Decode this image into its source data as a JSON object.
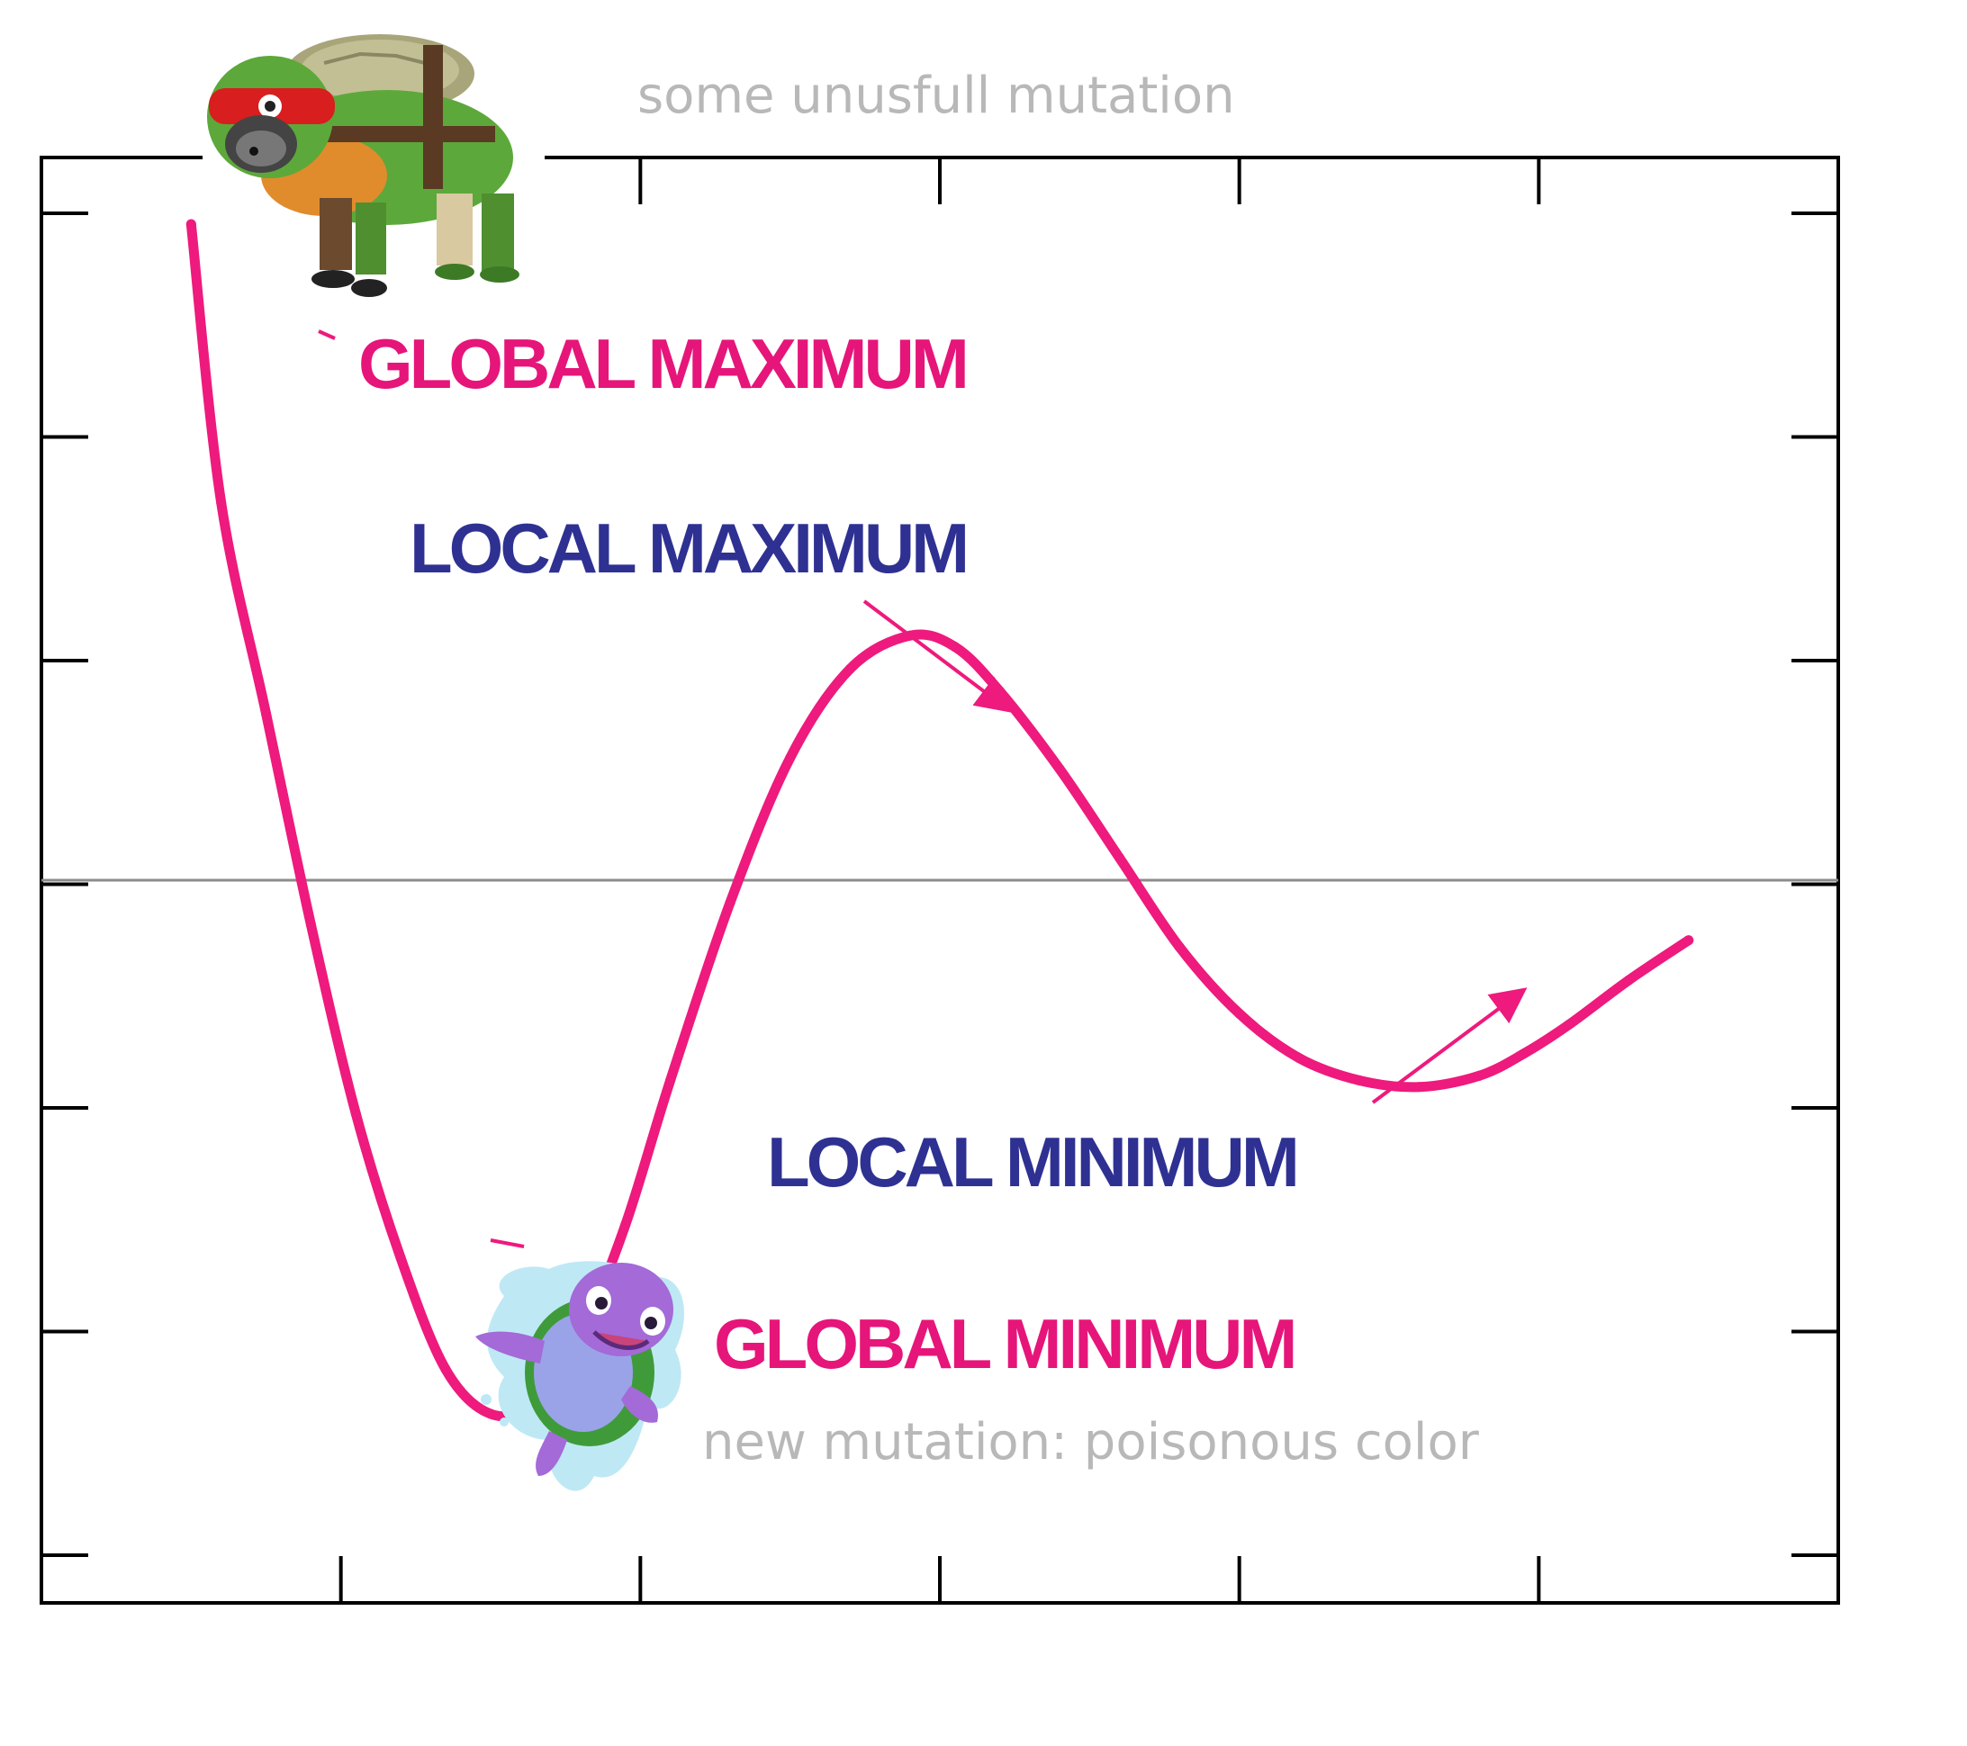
{
  "chart_data": {
    "type": "line",
    "title": "",
    "xlabel": "",
    "ylabel": "",
    "x_ticks": 6,
    "y_ticks": 7,
    "xlim": [
      0,
      6
    ],
    "ylim": [
      -3.25,
      3.25
    ],
    "zero_line": true,
    "grid": false,
    "legend": "none",
    "series": [
      {
        "x": [
          0.5,
          0.6,
          0.75,
          0.9,
          1.05,
          1.2,
          1.35,
          1.5,
          1.65,
          1.8,
          1.95,
          2.1,
          2.3,
          2.5,
          2.7,
          2.9,
          3.05,
          3.2,
          3.4,
          3.6,
          3.8,
          4.0,
          4.2,
          4.4,
          4.6,
          4.8,
          4.95,
          5.1,
          5.3,
          5.5
        ],
        "y": [
          2.95,
          1.7,
          0.75,
          -0.2,
          -1.05,
          -1.7,
          -2.2,
          -2.4,
          -2.35,
          -2.05,
          -1.55,
          -0.9,
          -0.1,
          0.55,
          0.95,
          1.1,
          1.05,
          0.85,
          0.5,
          0.1,
          -0.3,
          -0.6,
          -0.8,
          -0.9,
          -0.93,
          -0.88,
          -0.78,
          -0.65,
          -0.45,
          -0.27
        ]
      }
    ],
    "annotations": {
      "top_note": "some unusfull mutation",
      "global_maximum": "GLOBAL MAXIMUM",
      "local_maximum": "LOCAL MAXIMUM",
      "local_minimum": "LOCAL MINIMUM",
      "global_minimum": "GLOBAL MINIMUM",
      "bottom_note": "new mutation: poisonous color"
    }
  },
  "colors": {
    "curve": "#ee1a7d",
    "pink_label": "#e6157a",
    "navy_label": "#2e3192",
    "note_text": "#b8b8b8",
    "axes": "#000000",
    "zero_line": "#8c8c8c"
  },
  "icons": {
    "top_figure": "dog-in-turtle-costume-image",
    "bottom_figure": "purple-cartoon-turtle-image"
  }
}
